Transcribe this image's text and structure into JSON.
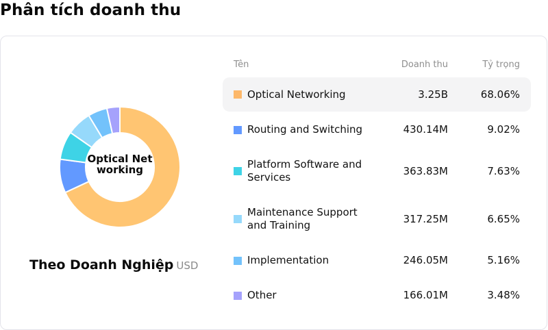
{
  "page": {
    "title": "Phân tích doanh thu"
  },
  "card": {
    "center_label": "Optical Networking",
    "subtitle": "Theo Doanh Nghiệp",
    "unit": "USD",
    "table": {
      "headers": {
        "name": "Tên",
        "revenue": "Doanh thu",
        "share": "Tỷ trọng"
      },
      "rows": [
        {
          "name": "Optical Networking",
          "revenue": "3.25B",
          "share": "68.06%",
          "color": "#FDB86A",
          "highlighted": true
        },
        {
          "name": "Routing and Switching",
          "revenue": "430.14M",
          "share": "9.02%",
          "color": "#6299FF",
          "highlighted": false
        },
        {
          "name": "Platform Software and Services",
          "revenue": "363.83M",
          "share": "7.63%",
          "color": "#3ED3E6",
          "highlighted": false
        },
        {
          "name": "Maintenance Support and Training",
          "revenue": "317.25M",
          "share": "6.65%",
          "color": "#96D9FB",
          "highlighted": false
        },
        {
          "name": "Implementation",
          "revenue": "246.05M",
          "share": "5.16%",
          "color": "#73C2FB",
          "highlighted": false
        },
        {
          "name": "Other",
          "revenue": "166.01M",
          "share": "3.48%",
          "color": "#A5A2FC",
          "highlighted": false
        }
      ]
    }
  },
  "chart_data": {
    "type": "pie",
    "variant": "donut",
    "title": "Theo Doanh Nghiệp",
    "unit": "USD",
    "center_label": "Optical Networking",
    "categories": [
      "Optical Networking",
      "Routing and Switching",
      "Platform Software and Services",
      "Maintenance Support and Training",
      "Implementation",
      "Other"
    ],
    "values": [
      3250000000,
      430140000,
      363830000,
      317250000,
      246050000,
      166010000
    ],
    "value_labels": [
      "3.25B",
      "430.14M",
      "363.83M",
      "317.25M",
      "246.05M",
      "166.01M"
    ],
    "shares_percent": [
      68.06,
      9.02,
      7.63,
      6.65,
      5.16,
      3.48
    ],
    "colors": [
      "#FFC572",
      "#6299FF",
      "#3ED3E6",
      "#96D9FB",
      "#73C2FB",
      "#A5A2FC"
    ],
    "legend_position": "right (table)"
  }
}
